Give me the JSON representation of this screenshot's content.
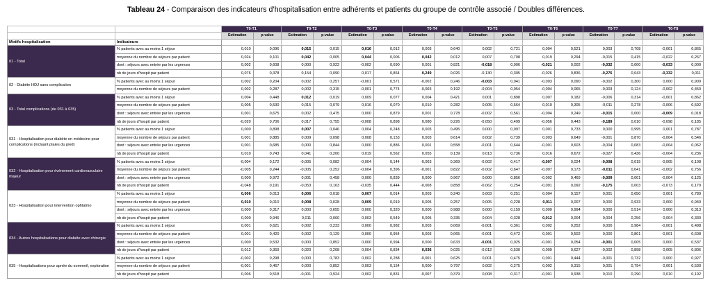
{
  "title": {
    "label": "Tableau 24",
    "text": " - Comparaison des indicateurs d’hospitalisation entre adhérents et patients du groupe de contrôle associé / Doubles différences."
  },
  "table": {
    "periods": [
      "T0-T1",
      "T0-T2",
      "T0-T3",
      "T0-T4",
      "T0-T5",
      "T0-T6",
      "T0-T7",
      "T0-T8"
    ],
    "subheaders": [
      "Estimation",
      "p-value"
    ],
    "col_motifs": "Motifs hospitalisation",
    "col_indicateurs": "Indicateurs",
    "groups": [
      {
        "motif": "01 - Total",
        "dark": true,
        "rows": [
          {
            "ind": "% patients avec au moins 1 séjour",
            "vals": [
              "0,010",
              "0,096",
              "0,015",
              "0,015",
              "0,016",
              "0,012",
              "0,003",
              "0,640",
              "0,002",
              "0,721",
              "0,004",
              "0,521",
              "0,003",
              "0,708",
              "-0,001",
              "0,865"
            ],
            "bold": [
              2,
              4
            ]
          },
          {
            "ind": "moyenne du nombre de séjours par patient",
            "vals": [
              "0,024",
              "0,101",
              "0,042",
              "0,005",
              "0,044",
              "0,006",
              "0,042",
              "0,012",
              "0,007",
              "0,708",
              "0,019",
              "0,294",
              "-0,015",
              "0,415",
              "-0,022",
              "0,267"
            ],
            "bold": [
              2,
              4,
              6
            ]
          },
          {
            "ind": "dont : séjours avec entrée par les urgences",
            "vals": [
              "0,002",
              "0,608",
              "0,000",
              "0,922",
              "-0,002",
              "0,690",
              "0,001",
              "0,821",
              "-0,018",
              "0,006",
              "-0,021",
              "0,002",
              "-0,032",
              "0,000",
              "-0,033",
              "0,000"
            ],
            "bold": [
              8,
              10,
              12,
              14
            ]
          },
          {
            "ind": "nb de jours d'hospit par patient",
            "vals": [
              "0,076",
              "0,378",
              "0,154",
              "0,090",
              "0,017",
              "0,864",
              "0,249",
              "0,026",
              "-0,130",
              "0,305",
              "-0,026",
              "0,836",
              "-0,276",
              "0,043",
              "-0,332",
              "0,011"
            ],
            "bold": [
              6,
              12,
              14
            ]
          }
        ]
      },
      {
        "motif": "02 - Diabète HDJ sans complication",
        "dark": false,
        "rows": [
          {
            "ind": "% patients avec au moins 1 séjour",
            "vals": [
              "0,002",
              "0,204",
              "0,002",
              "0,257",
              "-0,001",
              "0,571",
              "-0,002",
              "0,246",
              "-0,003",
              "0,041",
              "-0,003",
              "0,090",
              "-0,002",
              "0,300",
              "0,000",
              "0,900"
            ],
            "bold": [
              8
            ]
          },
          {
            "ind": "moyenne du nombre de séjours par patient",
            "vals": [
              "0,002",
              "0,287",
              "0,002",
              "0,315",
              "-0,001",
              "0,774",
              "-0,003",
              "0,192",
              "-0,004",
              "0,054",
              "-0,004",
              "0,065",
              "-0,003",
              "0,124",
              "-0,002",
              "0,450"
            ],
            "bold": []
          }
        ]
      },
      {
        "motif": "03 - Total complications (de 031 à 035)",
        "dark": true,
        "rows": [
          {
            "ind": "% patients avec au moins 1 séjour",
            "vals": [
              "0,004",
              "0,448",
              "0,012",
              "0,019",
              "0,009",
              "0,077",
              "0,004",
              "0,421",
              "0,001",
              "0,898",
              "0,007",
              "0,182",
              "-0,006",
              "0,314",
              "-0,001",
              "0,862"
            ],
            "bold": [
              2
            ]
          },
          {
            "ind": "moyenne du nombre de séjours par patient",
            "vals": [
              "0,005",
              "0,530",
              "0,015",
              "0,079",
              "0,016",
              "0,070",
              "0,010",
              "0,282",
              "0,005",
              "0,564",
              "0,010",
              "0,305",
              "-0,011",
              "0,278",
              "-0,006",
              "0,592"
            ],
            "bold": []
          },
          {
            "ind": "dont : séjours avec entrée par les urgences",
            "vals": [
              "0,001",
              "0,675",
              "0,002",
              "0,475",
              "0,000",
              "0,879",
              "0,001",
              "0,778",
              "-0,002",
              "0,561",
              "-0,004",
              "0,249",
              "-0,015",
              "0,000",
              "-0,009",
              "0,018"
            ],
            "bold": [
              12,
              14
            ]
          },
          {
            "ind": "nb de jours d'hospit par patient",
            "vals": [
              "-0,020",
              "0,706",
              "0,017",
              "0,755",
              "-0,008",
              "0,898",
              "0,080",
              "0,226",
              "-0,050",
              "0,499",
              "-0,056",
              "0,443",
              "-0,189",
              "0,010",
              "-0,098",
              "0,185"
            ],
            "bold": [
              12
            ]
          }
        ]
      },
      {
        "motif": "031 - Hospitalisation pour diabète en médecine pour complications (incluant plaies du pied)",
        "dark": false,
        "rows": [
          {
            "ind": "% patients avec au moins 1 séjour",
            "vals": [
              "0,000",
              "0,898",
              "0,007",
              "0,046",
              "0,004",
              "0,248",
              "0,003",
              "0,495",
              "0,000",
              "0,997",
              "0,001",
              "0,733",
              "0,000",
              "0,995",
              "0,001",
              "0,787"
            ],
            "bold": [
              2
            ]
          },
          {
            "ind": "moyenne du nombre de séjours par patient",
            "vals": [
              "0,001",
              "0,885",
              "0,009",
              "0,098",
              "0,008",
              "0,153",
              "0,003",
              "0,614",
              "0,002",
              "0,739",
              "0,003",
              "0,649",
              "-0,001",
              "0,870",
              "-0,004",
              "0,546"
            ],
            "bold": []
          },
          {
            "ind": "dont : séjours avec entrée par les urgences",
            "vals": [
              "0,001",
              "0,685",
              "0,000",
              "0,844",
              "0,000",
              "0,886",
              "0,001",
              "0,558",
              "-0,001",
              "0,644",
              "-0,001",
              "0,603",
              "-0,004",
              "0,083",
              "-0,004",
              "0,062"
            ],
            "bold": []
          },
          {
            "ind": "nb de jours d'hospit par patient",
            "vals": [
              "0,010",
              "0,743",
              "0,041",
              "0,200",
              "0,019",
              "0,562",
              "0,055",
              "0,139",
              "0,013",
              "0,736",
              "0,016",
              "0,672",
              "-0,027",
              "0,436",
              "-0,004",
              "0,236"
            ],
            "bold": []
          }
        ]
      },
      {
        "motif": "032 - Hospitalisation pour événement cardiovasculaire majeur",
        "dark": true,
        "rows": [
          {
            "ind": "% patients avec au moins 1 séjour",
            "vals": [
              "-0,004",
              "0,172",
              "-0,005",
              "0,082",
              "-0,004",
              "0,144",
              "-0,003",
              "0,369",
              "-0,002",
              "0,417",
              "-0,007",
              "0,024",
              "-0,008",
              "0,015",
              "-0,005",
              "0,108"
            ],
            "bold": [
              10,
              12
            ]
          },
          {
            "ind": "moyenne du nombre de séjours par patient",
            "vals": [
              "-0,005",
              "0,244",
              "-0,005",
              "0,252",
              "-0,004",
              "0,396",
              "-0,001",
              "0,822",
              "-0,002",
              "0,647",
              "-0,007",
              "0,173",
              "-0,011",
              "0,041",
              "-0,002",
              "0,756"
            ],
            "bold": [
              12
            ]
          },
          {
            "ind": "dont : séjours avec entrée par les urgences",
            "vals": [
              "0,000",
              "0,972",
              "0,001",
              "0,458",
              "0,000",
              "0,839",
              "0,000",
              "0,967",
              "0,000",
              "0,856",
              "-0,002",
              "0,469",
              "-0,009",
              "0,001",
              "-0,004",
              "0,125"
            ],
            "bold": [
              12
            ]
          },
          {
            "ind": "nb de jours d'hospit par patient",
            "vals": [
              "-0,048",
              "0,191",
              "-0,053",
              "0,163",
              "-0,035",
              "0,444",
              "-0,008",
              "0,858",
              "-0,062",
              "0,254",
              "-0,091",
              "0,092",
              "-0,175",
              "0,003",
              "-0,073",
              "0,179"
            ],
            "bold": [
              12
            ]
          }
        ]
      },
      {
        "motif": "033 - Hospitalisation pour intervention ophtalmo",
        "dark": false,
        "rows": [
          {
            "ind": "% patients avec au moins 1 séjour",
            "vals": [
              "0,006",
              "0,013",
              "0,006",
              "0,018",
              "0,007",
              "0,014",
              "0,003",
              "0,240",
              "0,003",
              "0,251",
              "0,004",
              "0,157",
              "0,001",
              "0,650",
              "0,001",
              "0,789"
            ],
            "bold": [
              0,
              2,
              4
            ]
          },
          {
            "ind": "moyenne du nombre de séjours par patient",
            "vals": [
              "0,010",
              "0,010",
              "0,008",
              "0,028",
              "0,009",
              "0,019",
              "0,005",
              "0,257",
              "0,005",
              "0,228",
              "0,011",
              "0,007",
              "0,000",
              "0,933",
              "0,000",
              "0,940"
            ],
            "bold": [
              0,
              2,
              4,
              10
            ]
          },
          {
            "ind": "dont : séjours avec entrée par les urgences",
            "vals": [
              "0,000",
              "0,317",
              "0,000",
              "0,655",
              "0,000",
              "0,320",
              "0,000",
              "0,988",
              "0,000",
              "0,159",
              "0,000",
              "0,994",
              "0,000",
              "0,514",
              "0,000",
              "0,313"
            ],
            "bold": []
          },
          {
            "ind": "nb de jours d'hospit par patient",
            "vals": [
              "0,000",
              "0,946",
              "0,011",
              "0,060",
              "0,003",
              "0,549",
              "0,005",
              "0,335",
              "0,004",
              "0,328",
              "0,012",
              "0,004",
              "0,004",
              "0,256",
              "0,004",
              "0,330"
            ],
            "bold": [
              10
            ]
          }
        ]
      },
      {
        "motif": "034 - Autres hospitalisations pour diabète avec chirurgie",
        "dark": true,
        "rows": [
          {
            "ind": "% patients avec au moins 1 séjour",
            "vals": [
              "0,001",
              "0,621",
              "0,002",
              "0,233",
              "0,000",
              "0,982",
              "0,003",
              "0,069",
              "-0,001",
              "0,361",
              "0,002",
              "0,252",
              "0,000",
              "0,984",
              "-0,001",
              "0,498"
            ],
            "bold": []
          },
          {
            "ind": "moyenne du nombre de séjours par patient",
            "vals": [
              "0,001",
              "0,420",
              "0,002",
              "0,129",
              "0,000",
              "0,954",
              "0,003",
              "0,065",
              "-0,001",
              "0,472",
              "0,001",
              "0,502",
              "0,000",
              "0,801",
              "-0,001",
              "0,608"
            ],
            "bold": []
          },
          {
            "ind": "dont : séjours avec entrée par les urgences",
            "vals": [
              "0,000",
              "0,532",
              "0,000",
              "0,852",
              "0,000",
              "0,994",
              "0,000",
              "0,633",
              "-0,001",
              "0,025",
              "-0,001",
              "0,054",
              "-0,001",
              "0,005",
              "0,000",
              "0,537"
            ],
            "bold": [
              8,
              12
            ]
          },
          {
            "ind": "nb de jours d'hospit par patient",
            "vals": [
              "0,012",
              "0,369",
              "0,020",
              "0,208",
              "0,004",
              "0,834",
              "0,036",
              "0,025",
              "-0,012",
              "0,530",
              "0,009",
              "0,627",
              "-0,002",
              "0,898",
              "0,005",
              "0,806"
            ],
            "bold": [
              6
            ]
          }
        ]
      },
      {
        "motif": "035 - Hospitalisations pour apnée du sommeil, exploration",
        "dark": false,
        "rows": [
          {
            "ind": "% patients avec au moins 1 séjour",
            "vals": [
              "-0,002",
              "0,298",
              "0,000",
              "0,783",
              "0,002",
              "0,288",
              "-0,001",
              "0,625",
              "0,001",
              "0,475",
              "0,001",
              "0,444",
              "-0,001",
              "0,732",
              "0,000",
              "0,927"
            ],
            "bold": []
          },
          {
            "ind": "moyenne du nombre de séjours par patient",
            "vals": [
              "-0,001",
              "0,467",
              "0,000",
              "0,852",
              "0,003",
              "0,154",
              "0,000",
              "0,797",
              "0,002",
              "0,275",
              "0,002",
              "0,315",
              "0,001",
              "0,794",
              "0,001",
              "0,530"
            ],
            "bold": []
          },
          {
            "ind": "nb de jours d'hospit par patient",
            "vals": [
              "0,006",
              "0,518",
              "-0,001",
              "0,924",
              "0,002",
              "0,831",
              "-0,007",
              "0,379",
              "0,008",
              "0,317",
              "-0,001",
              "0,938",
              "0,010",
              "0,290",
              "0,010",
              "0,192"
            ],
            "bold": []
          }
        ]
      }
    ]
  }
}
